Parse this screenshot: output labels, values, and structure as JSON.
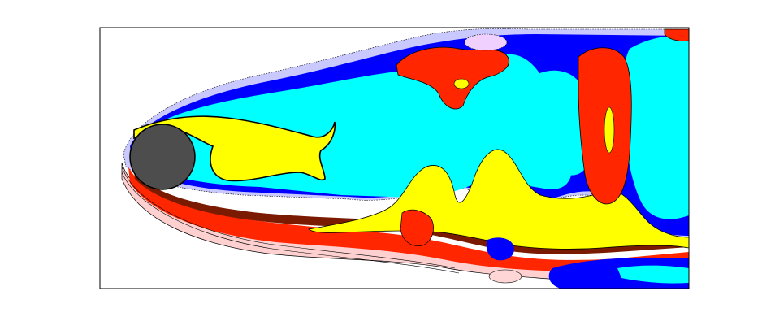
{
  "figure": {
    "kind": "vorticity-contour-field",
    "obstacle": "circular-cylinder",
    "colors": {
      "background": "#ffffff",
      "frame": "#000000",
      "cylinder": "#4d4d4d",
      "strong_positive": "#ffff00",
      "positive_warm": "#ff2600",
      "positive_dark": "#7a1a00",
      "positive_light": "#ff9f9f",
      "strong_negative": "#00ffff",
      "negative_blue": "#0000ff",
      "negative_light": "#b8b8ff",
      "contour_line": "#000000"
    }
  }
}
